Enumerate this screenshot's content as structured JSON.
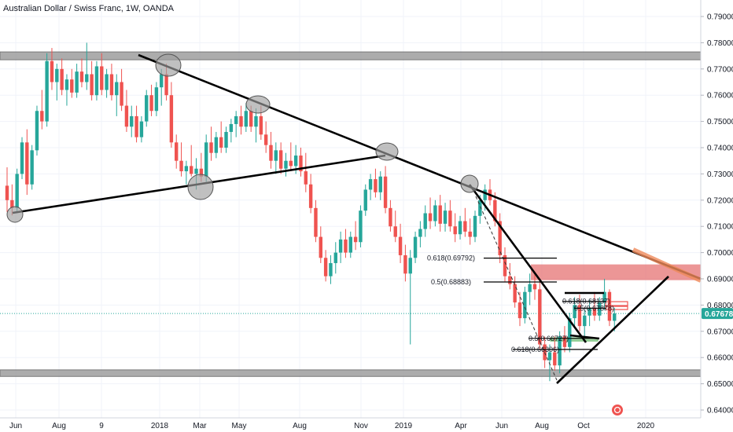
{
  "header": {
    "title": "Australian Dollar / Swiss Franc, 1W, OANDA"
  },
  "colors": {
    "up": "#26a69a",
    "down": "#ef5350",
    "zone_gray": "#9e9e9e",
    "zone_red": "#e57373",
    "price_line": "#26a69a",
    "badge": "#26a69a",
    "orange": "#ef8a5b"
  },
  "chart_data": {
    "type": "candlestick",
    "symbol": "Australian Dollar / Swiss Franc",
    "timeframe": "1W",
    "source": "OANDA",
    "y_axis": {
      "ticks": [
        "0.79000",
        "0.78000",
        "0.77000",
        "0.76000",
        "0.75000",
        "0.74000",
        "0.73000",
        "0.72000",
        "0.71000",
        "0.70000",
        "0.69000",
        "0.68000",
        "0.67000",
        "0.66000",
        "0.65000",
        "0.64000"
      ],
      "range": [
        0.636,
        0.7935
      ]
    },
    "x_axis": {
      "ticks": [
        "Jun",
        "Aug",
        "9",
        "2018",
        "Mar",
        "May",
        "Aug",
        "Nov",
        "2019",
        "Apr",
        "Jun",
        "Aug",
        "Oct",
        "2020"
      ],
      "range_weeks": [
        0,
        123
      ]
    },
    "current_price": "0.67678",
    "candles": [
      {
        "o": 0.7255,
        "h": 0.7325,
        "l": 0.7155,
        "c": 0.72
      },
      {
        "o": 0.72,
        "h": 0.726,
        "l": 0.7142,
        "c": 0.717
      },
      {
        "o": 0.717,
        "h": 0.732,
        "l": 0.715,
        "c": 0.73
      },
      {
        "o": 0.73,
        "h": 0.744,
        "l": 0.728,
        "c": 0.742
      },
      {
        "o": 0.742,
        "h": 0.747,
        "l": 0.722,
        "c": 0.726
      },
      {
        "o": 0.726,
        "h": 0.741,
        "l": 0.724,
        "c": 0.739
      },
      {
        "o": 0.739,
        "h": 0.756,
        "l": 0.737,
        "c": 0.754
      },
      {
        "o": 0.754,
        "h": 0.762,
        "l": 0.747,
        "c": 0.75
      },
      {
        "o": 0.75,
        "h": 0.776,
        "l": 0.748,
        "c": 0.773
      },
      {
        "o": 0.773,
        "h": 0.778,
        "l": 0.762,
        "c": 0.765
      },
      {
        "o": 0.765,
        "h": 0.772,
        "l": 0.758,
        "c": 0.77
      },
      {
        "o": 0.77,
        "h": 0.774,
        "l": 0.76,
        "c": 0.762
      },
      {
        "o": 0.762,
        "h": 0.768,
        "l": 0.756,
        "c": 0.766
      },
      {
        "o": 0.766,
        "h": 0.77,
        "l": 0.759,
        "c": 0.761
      },
      {
        "o": 0.761,
        "h": 0.772,
        "l": 0.759,
        "c": 0.769
      },
      {
        "o": 0.769,
        "h": 0.774,
        "l": 0.763,
        "c": 0.765
      },
      {
        "o": 0.765,
        "h": 0.78,
        "l": 0.762,
        "c": 0.768
      },
      {
        "o": 0.768,
        "h": 0.773,
        "l": 0.758,
        "c": 0.76
      },
      {
        "o": 0.76,
        "h": 0.773,
        "l": 0.758,
        "c": 0.771
      },
      {
        "o": 0.771,
        "h": 0.776,
        "l": 0.76,
        "c": 0.762
      },
      {
        "o": 0.762,
        "h": 0.77,
        "l": 0.759,
        "c": 0.768
      },
      {
        "o": 0.768,
        "h": 0.772,
        "l": 0.758,
        "c": 0.76
      },
      {
        "o": 0.76,
        "h": 0.768,
        "l": 0.752,
        "c": 0.765
      },
      {
        "o": 0.765,
        "h": 0.77,
        "l": 0.754,
        "c": 0.756
      },
      {
        "o": 0.756,
        "h": 0.762,
        "l": 0.746,
        "c": 0.748
      },
      {
        "o": 0.748,
        "h": 0.756,
        "l": 0.744,
        "c": 0.752
      },
      {
        "o": 0.752,
        "h": 0.756,
        "l": 0.742,
        "c": 0.744
      },
      {
        "o": 0.744,
        "h": 0.752,
        "l": 0.742,
        "c": 0.75
      },
      {
        "o": 0.75,
        "h": 0.762,
        "l": 0.748,
        "c": 0.76
      },
      {
        "o": 0.76,
        "h": 0.764,
        "l": 0.752,
        "c": 0.754
      },
      {
        "o": 0.754,
        "h": 0.765,
        "l": 0.752,
        "c": 0.763
      },
      {
        "o": 0.763,
        "h": 0.77,
        "l": 0.756,
        "c": 0.768
      },
      {
        "o": 0.768,
        "h": 0.772,
        "l": 0.758,
        "c": 0.76
      },
      {
        "o": 0.76,
        "h": 0.765,
        "l": 0.74,
        "c": 0.742
      },
      {
        "o": 0.742,
        "h": 0.745,
        "l": 0.732,
        "c": 0.735
      },
      {
        "o": 0.735,
        "h": 0.742,
        "l": 0.729,
        "c": 0.731
      },
      {
        "o": 0.731,
        "h": 0.735,
        "l": 0.726,
        "c": 0.733
      },
      {
        "o": 0.733,
        "h": 0.741,
        "l": 0.729,
        "c": 0.73
      },
      {
        "o": 0.73,
        "h": 0.736,
        "l": 0.724,
        "c": 0.732
      },
      {
        "o": 0.732,
        "h": 0.738,
        "l": 0.727,
        "c": 0.729
      },
      {
        "o": 0.729,
        "h": 0.745,
        "l": 0.727,
        "c": 0.742
      },
      {
        "o": 0.742,
        "h": 0.748,
        "l": 0.735,
        "c": 0.738
      },
      {
        "o": 0.738,
        "h": 0.746,
        "l": 0.736,
        "c": 0.744
      },
      {
        "o": 0.744,
        "h": 0.75,
        "l": 0.738,
        "c": 0.74
      },
      {
        "o": 0.74,
        "h": 0.748,
        "l": 0.738,
        "c": 0.746
      },
      {
        "o": 0.746,
        "h": 0.751,
        "l": 0.742,
        "c": 0.749
      },
      {
        "o": 0.749,
        "h": 0.754,
        "l": 0.744,
        "c": 0.752
      },
      {
        "o": 0.752,
        "h": 0.756,
        "l": 0.745,
        "c": 0.748
      },
      {
        "o": 0.748,
        "h": 0.757,
        "l": 0.746,
        "c": 0.754
      },
      {
        "o": 0.754,
        "h": 0.756,
        "l": 0.746,
        "c": 0.748
      },
      {
        "o": 0.748,
        "h": 0.755,
        "l": 0.742,
        "c": 0.752
      },
      {
        "o": 0.752,
        "h": 0.756,
        "l": 0.743,
        "c": 0.745
      },
      {
        "o": 0.745,
        "h": 0.75,
        "l": 0.738,
        "c": 0.741
      },
      {
        "o": 0.741,
        "h": 0.746,
        "l": 0.732,
        "c": 0.735
      },
      {
        "o": 0.735,
        "h": 0.742,
        "l": 0.73,
        "c": 0.739
      },
      {
        "o": 0.739,
        "h": 0.742,
        "l": 0.73,
        "c": 0.732
      },
      {
        "o": 0.732,
        "h": 0.738,
        "l": 0.729,
        "c": 0.735
      },
      {
        "o": 0.735,
        "h": 0.742,
        "l": 0.731,
        "c": 0.733
      },
      {
        "o": 0.733,
        "h": 0.741,
        "l": 0.73,
        "c": 0.737
      },
      {
        "o": 0.737,
        "h": 0.74,
        "l": 0.729,
        "c": 0.731
      },
      {
        "o": 0.731,
        "h": 0.738,
        "l": 0.723,
        "c": 0.726
      },
      {
        "o": 0.726,
        "h": 0.73,
        "l": 0.715,
        "c": 0.717
      },
      {
        "o": 0.717,
        "h": 0.72,
        "l": 0.704,
        "c": 0.706
      },
      {
        "o": 0.706,
        "h": 0.71,
        "l": 0.696,
        "c": 0.698
      },
      {
        "o": 0.698,
        "h": 0.701,
        "l": 0.689,
        "c": 0.691
      },
      {
        "o": 0.691,
        "h": 0.699,
        "l": 0.688,
        "c": 0.696
      },
      {
        "o": 0.696,
        "h": 0.704,
        "l": 0.692,
        "c": 0.7
      },
      {
        "o": 0.7,
        "h": 0.708,
        "l": 0.696,
        "c": 0.705
      },
      {
        "o": 0.705,
        "h": 0.709,
        "l": 0.698,
        "c": 0.7
      },
      {
        "o": 0.7,
        "h": 0.708,
        "l": 0.698,
        "c": 0.706
      },
      {
        "o": 0.706,
        "h": 0.712,
        "l": 0.701,
        "c": 0.704
      },
      {
        "o": 0.704,
        "h": 0.718,
        "l": 0.702,
        "c": 0.716
      },
      {
        "o": 0.716,
        "h": 0.726,
        "l": 0.714,
        "c": 0.724
      },
      {
        "o": 0.724,
        "h": 0.73,
        "l": 0.72,
        "c": 0.728
      },
      {
        "o": 0.728,
        "h": 0.732,
        "l": 0.721,
        "c": 0.723
      },
      {
        "o": 0.723,
        "h": 0.731,
        "l": 0.72,
        "c": 0.729
      },
      {
        "o": 0.729,
        "h": 0.733,
        "l": 0.715,
        "c": 0.717
      },
      {
        "o": 0.717,
        "h": 0.72,
        "l": 0.708,
        "c": 0.71
      },
      {
        "o": 0.71,
        "h": 0.716,
        "l": 0.704,
        "c": 0.706
      },
      {
        "o": 0.706,
        "h": 0.711,
        "l": 0.696,
        "c": 0.699
      },
      {
        "o": 0.699,
        "h": 0.703,
        "l": 0.689,
        "c": 0.692
      },
      {
        "o": 0.692,
        "h": 0.701,
        "l": 0.665,
        "c": 0.698
      },
      {
        "o": 0.698,
        "h": 0.708,
        "l": 0.696,
        "c": 0.706
      },
      {
        "o": 0.706,
        "h": 0.712,
        "l": 0.702,
        "c": 0.709
      },
      {
        "o": 0.709,
        "h": 0.718,
        "l": 0.706,
        "c": 0.715
      },
      {
        "o": 0.715,
        "h": 0.721,
        "l": 0.709,
        "c": 0.712
      },
      {
        "o": 0.712,
        "h": 0.72,
        "l": 0.71,
        "c": 0.718
      },
      {
        "o": 0.718,
        "h": 0.722,
        "l": 0.708,
        "c": 0.711
      },
      {
        "o": 0.711,
        "h": 0.719,
        "l": 0.708,
        "c": 0.716
      },
      {
        "o": 0.716,
        "h": 0.72,
        "l": 0.708,
        "c": 0.71
      },
      {
        "o": 0.71,
        "h": 0.715,
        "l": 0.704,
        "c": 0.707
      },
      {
        "o": 0.707,
        "h": 0.714,
        "l": 0.705,
        "c": 0.712
      },
      {
        "o": 0.712,
        "h": 0.717,
        "l": 0.706,
        "c": 0.708
      },
      {
        "o": 0.708,
        "h": 0.713,
        "l": 0.703,
        "c": 0.706
      },
      {
        "o": 0.706,
        "h": 0.716,
        "l": 0.704,
        "c": 0.714
      },
      {
        "o": 0.714,
        "h": 0.722,
        "l": 0.711,
        "c": 0.72
      },
      {
        "o": 0.72,
        "h": 0.726,
        "l": 0.716,
        "c": 0.724
      },
      {
        "o": 0.724,
        "h": 0.728,
        "l": 0.718,
        "c": 0.72
      },
      {
        "o": 0.72,
        "h": 0.723,
        "l": 0.71,
        "c": 0.712
      },
      {
        "o": 0.712,
        "h": 0.715,
        "l": 0.696,
        "c": 0.699
      },
      {
        "o": 0.699,
        "h": 0.702,
        "l": 0.689,
        "c": 0.691
      },
      {
        "o": 0.691,
        "h": 0.696,
        "l": 0.686,
        "c": 0.688
      },
      {
        "o": 0.688,
        "h": 0.691,
        "l": 0.679,
        "c": 0.681
      },
      {
        "o": 0.681,
        "h": 0.685,
        "l": 0.672,
        "c": 0.675
      },
      {
        "o": 0.675,
        "h": 0.687,
        "l": 0.673,
        "c": 0.685
      },
      {
        "o": 0.685,
        "h": 0.692,
        "l": 0.68,
        "c": 0.688
      },
      {
        "o": 0.688,
        "h": 0.692,
        "l": 0.682,
        "c": 0.686
      },
      {
        "o": 0.686,
        "h": 0.689,
        "l": 0.663,
        "c": 0.665
      },
      {
        "o": 0.665,
        "h": 0.668,
        "l": 0.656,
        "c": 0.659
      },
      {
        "o": 0.659,
        "h": 0.665,
        "l": 0.651,
        "c": 0.662
      },
      {
        "o": 0.662,
        "h": 0.668,
        "l": 0.655,
        "c": 0.657
      },
      {
        "o": 0.657,
        "h": 0.67,
        "l": 0.654,
        "c": 0.668
      },
      {
        "o": 0.668,
        "h": 0.672,
        "l": 0.662,
        "c": 0.664
      },
      {
        "o": 0.664,
        "h": 0.677,
        "l": 0.662,
        "c": 0.675
      },
      {
        "o": 0.675,
        "h": 0.683,
        "l": 0.672,
        "c": 0.68
      },
      {
        "o": 0.68,
        "h": 0.684,
        "l": 0.67,
        "c": 0.672
      },
      {
        "o": 0.672,
        "h": 0.678,
        "l": 0.668,
        "c": 0.676
      },
      {
        "o": 0.676,
        "h": 0.682,
        "l": 0.672,
        "c": 0.679
      },
      {
        "o": 0.679,
        "h": 0.685,
        "l": 0.674,
        "c": 0.676
      },
      {
        "o": 0.676,
        "h": 0.683,
        "l": 0.674,
        "c": 0.681
      },
      {
        "o": 0.681,
        "h": 0.69,
        "l": 0.678,
        "c": 0.685
      },
      {
        "o": 0.685,
        "h": 0.686,
        "l": 0.672,
        "c": 0.674
      },
      {
        "o": 0.674,
        "h": 0.679,
        "l": 0.67,
        "c": 0.6768
      }
    ],
    "annotations": {
      "fib_levels": [
        {
          "label": "0.618(0.69792)",
          "price": 0.6979
        },
        {
          "label": "0.5(0.68883)",
          "price": 0.6888
        },
        {
          "label": "0.618(0.68137)",
          "price": 0.6814
        },
        {
          "label": "0.5(0.67878)",
          "price": 0.6788
        },
        {
          "label": "0.5(0.66727)",
          "price": 0.6673
        },
        {
          "label": "0.618(0.66306)",
          "price": 0.6631
        }
      ]
    }
  }
}
